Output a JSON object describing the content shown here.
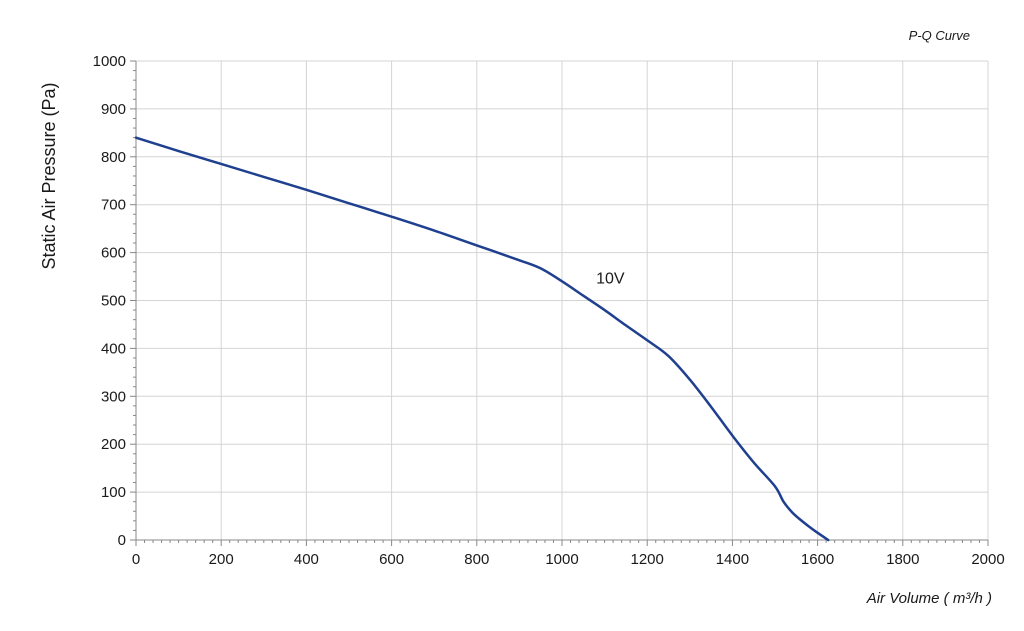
{
  "chart_data": {
    "type": "line",
    "title": "P-Q Curve",
    "xlabel": "Air Volume ( m³/h )",
    "ylabel": "Static Air Pressure  (Pa)",
    "xlim": [
      0,
      2000
    ],
    "ylim": [
      0,
      1000
    ],
    "xticks": [
      "0",
      "200",
      "400",
      "600",
      "800",
      "1000",
      "1200",
      "1400",
      "1600",
      "1800",
      "2000"
    ],
    "yticks": [
      "0",
      "100",
      "200",
      "300",
      "400",
      "500",
      "600",
      "700",
      "800",
      "900",
      "1000"
    ],
    "grid": true,
    "series": [
      {
        "name": "10V",
        "color": "#1f3f8f",
        "x": [
          0,
          100,
          200,
          300,
          400,
          500,
          600,
          700,
          800,
          900,
          950,
          1000,
          1050,
          1100,
          1150,
          1200,
          1250,
          1300,
          1350,
          1400,
          1450,
          1500,
          1520,
          1540,
          1560,
          1580,
          1600,
          1625
        ],
        "y": [
          840,
          812,
          785,
          758,
          731,
          703,
          675,
          646,
          615,
          584,
          567,
          540,
          510,
          480,
          448,
          417,
          384,
          335,
          278,
          218,
          162,
          112,
          80,
          58,
          42,
          28,
          15,
          0
        ]
      }
    ],
    "annotations": [
      {
        "text": "10V",
        "x": 1080,
        "y": 535
      }
    ]
  }
}
